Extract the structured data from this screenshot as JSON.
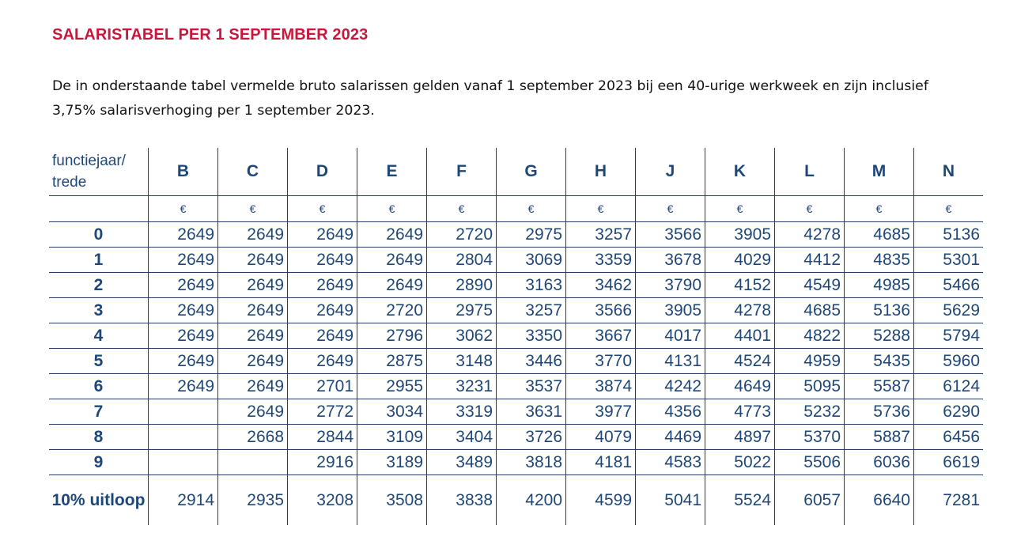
{
  "title": "SALARISTABEL PER 1 SEPTEMBER 2023",
  "intro": "De in onderstaande tabel vermelde bruto salarissen gelden vanaf 1 september 2023 bij een 40-urige werkweek en zijn inclusief 3,75% salarisverhoging per 1 september 2023.",
  "table": {
    "corner_header": "functiejaar/ trede",
    "columns": [
      "B",
      "C",
      "D",
      "E",
      "F",
      "G",
      "H",
      "J",
      "K",
      "L",
      "M",
      "N"
    ],
    "currency_symbol": "€",
    "rows": [
      {
        "label": "0",
        "values": [
          "2649",
          "2649",
          "2649",
          "2649",
          "2720",
          "2975",
          "3257",
          "3566",
          "3905",
          "4278",
          "4685",
          "5136"
        ]
      },
      {
        "label": "1",
        "values": [
          "2649",
          "2649",
          "2649",
          "2649",
          "2804",
          "3069",
          "3359",
          "3678",
          "4029",
          "4412",
          "4835",
          "5301"
        ]
      },
      {
        "label": "2",
        "values": [
          "2649",
          "2649",
          "2649",
          "2649",
          "2890",
          "3163",
          "3462",
          "3790",
          "4152",
          "4549",
          "4985",
          "5466"
        ]
      },
      {
        "label": "3",
        "values": [
          "2649",
          "2649",
          "2649",
          "2720",
          "2975",
          "3257",
          "3566",
          "3905",
          "4278",
          "4685",
          "5136",
          "5629"
        ]
      },
      {
        "label": "4",
        "values": [
          "2649",
          "2649",
          "2649",
          "2796",
          "3062",
          "3350",
          "3667",
          "4017",
          "4401",
          "4822",
          "5288",
          "5794"
        ]
      },
      {
        "label": "5",
        "values": [
          "2649",
          "2649",
          "2649",
          "2875",
          "3148",
          "3446",
          "3770",
          "4131",
          "4524",
          "4959",
          "5435",
          "5960"
        ]
      },
      {
        "label": "6",
        "values": [
          "2649",
          "2649",
          "2701",
          "2955",
          "3231",
          "3537",
          "3874",
          "4242",
          "4649",
          "5095",
          "5587",
          "6124"
        ]
      },
      {
        "label": "7",
        "values": [
          "",
          "2649",
          "2772",
          "3034",
          "3319",
          "3631",
          "3977",
          "4356",
          "4773",
          "5232",
          "5736",
          "6290"
        ]
      },
      {
        "label": "8",
        "values": [
          "",
          "2668",
          "2844",
          "3109",
          "3404",
          "3726",
          "4079",
          "4469",
          "4897",
          "5370",
          "5887",
          "6456"
        ]
      },
      {
        "label": "9",
        "values": [
          "",
          "",
          "2916",
          "3189",
          "3489",
          "3818",
          "4181",
          "4583",
          "5022",
          "5506",
          "6036",
          "6619"
        ]
      },
      {
        "label": "10% uitloop",
        "values": [
          "2914",
          "2935",
          "3208",
          "3508",
          "3838",
          "4200",
          "4599",
          "5041",
          "5524",
          "6057",
          "6640",
          "7281"
        ]
      }
    ]
  }
}
